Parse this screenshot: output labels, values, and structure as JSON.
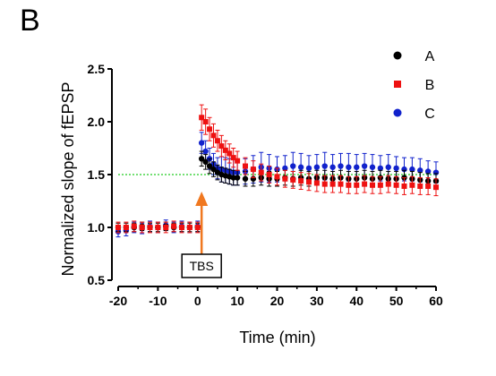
{
  "panel_label": "B",
  "chart_data": {
    "type": "scatter",
    "title": "",
    "xlabel": "Time (min)",
    "ylabel": "Normalized slope of fEPSP",
    "xlim": [
      -20,
      60
    ],
    "ylim": [
      0.5,
      2.5
    ],
    "xticks": [
      "-20",
      "-10",
      "0",
      "10",
      "20",
      "30",
      "40",
      "50",
      "60"
    ],
    "yticks": [
      "0.5",
      "1.0",
      "1.5",
      "2.0",
      "2.5"
    ],
    "reference_line": {
      "y": 1.5,
      "color": "#22cc22",
      "style": "dotted"
    },
    "annotation": {
      "label": "TBS",
      "x": 1,
      "arrow_color": "#f07820"
    },
    "legend": {
      "position": "top-right"
    },
    "series": [
      {
        "name": "A",
        "marker": "circle",
        "color": "#000000",
        "x": [
          -20,
          -18,
          -16,
          -14,
          -12,
          -10,
          -8,
          -6,
          -4,
          -2,
          0,
          1,
          2,
          3,
          4,
          5,
          6,
          7,
          8,
          9,
          10,
          12,
          14,
          16,
          18,
          20,
          22,
          24,
          26,
          28,
          30,
          32,
          34,
          36,
          38,
          40,
          42,
          44,
          46,
          48,
          50,
          52,
          54,
          56,
          58,
          60
        ],
        "y": [
          1.0,
          1.0,
          1.0,
          1.01,
          1.0,
          1.0,
          1.01,
          1.0,
          1.0,
          1.0,
          1.0,
          1.65,
          1.62,
          1.58,
          1.55,
          1.52,
          1.5,
          1.49,
          1.48,
          1.47,
          1.47,
          1.46,
          1.46,
          1.47,
          1.46,
          1.46,
          1.47,
          1.46,
          1.47,
          1.46,
          1.47,
          1.47,
          1.46,
          1.47,
          1.46,
          1.46,
          1.47,
          1.46,
          1.47,
          1.46,
          1.46,
          1.47,
          1.46,
          1.45,
          1.44,
          1.44
        ],
        "err": [
          0.04,
          0.04,
          0.04,
          0.04,
          0.04,
          0.04,
          0.04,
          0.04,
          0.04,
          0.04,
          0.04,
          0.07,
          0.07,
          0.07,
          0.07,
          0.07,
          0.07,
          0.07,
          0.07,
          0.07,
          0.07,
          0.07,
          0.07,
          0.07,
          0.07,
          0.07,
          0.07,
          0.07,
          0.07,
          0.07,
          0.07,
          0.07,
          0.07,
          0.07,
          0.07,
          0.07,
          0.07,
          0.07,
          0.07,
          0.07,
          0.07,
          0.07,
          0.07,
          0.07,
          0.07,
          0.07
        ]
      },
      {
        "name": "B",
        "marker": "square",
        "color": "#ee1111",
        "x": [
          -20,
          -18,
          -16,
          -14,
          -12,
          -10,
          -8,
          -6,
          -4,
          -2,
          0,
          1,
          2,
          3,
          4,
          5,
          6,
          7,
          8,
          9,
          10,
          12,
          14,
          16,
          18,
          20,
          22,
          24,
          26,
          28,
          30,
          32,
          34,
          36,
          38,
          40,
          42,
          44,
          46,
          48,
          50,
          52,
          54,
          56,
          58,
          60
        ],
        "y": [
          1.0,
          1.0,
          1.01,
          1.0,
          1.0,
          1.0,
          1.0,
          1.01,
          1.0,
          1.0,
          1.0,
          2.04,
          2.0,
          1.93,
          1.87,
          1.82,
          1.77,
          1.73,
          1.7,
          1.66,
          1.63,
          1.58,
          1.55,
          1.52,
          1.5,
          1.48,
          1.46,
          1.45,
          1.44,
          1.43,
          1.42,
          1.41,
          1.41,
          1.41,
          1.4,
          1.4,
          1.41,
          1.4,
          1.4,
          1.41,
          1.4,
          1.39,
          1.4,
          1.39,
          1.39,
          1.38
        ],
        "err": [
          0.05,
          0.05,
          0.05,
          0.05,
          0.05,
          0.05,
          0.05,
          0.05,
          0.05,
          0.05,
          0.05,
          0.12,
          0.12,
          0.11,
          0.11,
          0.1,
          0.1,
          0.09,
          0.09,
          0.09,
          0.09,
          0.08,
          0.08,
          0.08,
          0.08,
          0.08,
          0.08,
          0.08,
          0.08,
          0.08,
          0.08,
          0.08,
          0.08,
          0.08,
          0.08,
          0.08,
          0.08,
          0.08,
          0.08,
          0.08,
          0.08,
          0.08,
          0.08,
          0.08,
          0.08,
          0.08
        ]
      },
      {
        "name": "C",
        "marker": "circle",
        "color": "#1122cc",
        "x": [
          -20,
          -18,
          -16,
          -14,
          -12,
          -10,
          -8,
          -6,
          -4,
          -2,
          0,
          1,
          2,
          3,
          4,
          5,
          6,
          7,
          8,
          9,
          10,
          12,
          14,
          16,
          18,
          20,
          22,
          24,
          26,
          28,
          30,
          32,
          34,
          36,
          38,
          40,
          42,
          44,
          46,
          48,
          50,
          52,
          54,
          56,
          58,
          60
        ],
        "y": [
          0.96,
          0.97,
          1.0,
          0.99,
          1.01,
          1.0,
          1.02,
          1.0,
          1.01,
          1.0,
          1.01,
          1.8,
          1.72,
          1.65,
          1.6,
          1.56,
          1.55,
          1.54,
          1.53,
          1.52,
          1.52,
          1.53,
          1.55,
          1.57,
          1.56,
          1.55,
          1.56,
          1.58,
          1.57,
          1.56,
          1.57,
          1.58,
          1.57,
          1.58,
          1.57,
          1.57,
          1.58,
          1.57,
          1.56,
          1.57,
          1.56,
          1.55,
          1.55,
          1.54,
          1.53,
          1.52
        ],
        "err": [
          0.05,
          0.05,
          0.05,
          0.05,
          0.05,
          0.05,
          0.05,
          0.05,
          0.05,
          0.05,
          0.05,
          0.1,
          0.1,
          0.1,
          0.1,
          0.1,
          0.12,
          0.12,
          0.12,
          0.12,
          0.12,
          0.12,
          0.13,
          0.14,
          0.13,
          0.12,
          0.12,
          0.13,
          0.13,
          0.12,
          0.12,
          0.13,
          0.12,
          0.12,
          0.13,
          0.12,
          0.12,
          0.12,
          0.12,
          0.12,
          0.11,
          0.11,
          0.11,
          0.11,
          0.1,
          0.1
        ]
      }
    ]
  }
}
